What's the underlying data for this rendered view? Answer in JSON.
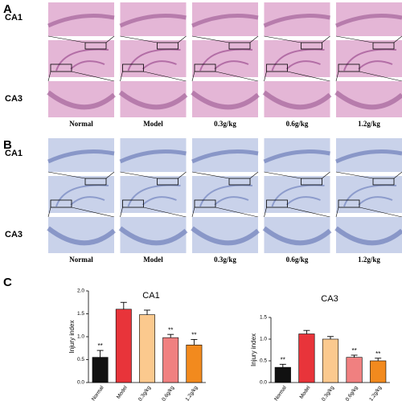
{
  "panels": [
    {
      "label": "A",
      "rows": [
        "CA1",
        "CA3"
      ],
      "columns": [
        "Normal",
        "Model",
        "0.3g/kg",
        "0.6g/kg",
        "1.2g/kg"
      ]
    },
    {
      "label": "B",
      "rows": [
        "CA1",
        "CA3"
      ],
      "columns": [
        "Normal",
        "Model",
        "0.3g/kg",
        "0.6g/kg",
        "1.2g/kg"
      ]
    },
    {
      "label": "C"
    }
  ],
  "chart_data": [
    {
      "type": "bar",
      "title": "CA1",
      "y_label": "Injury index",
      "categories": [
        "Normal",
        "Model",
        "0.3g/kg",
        "0.6g/kg",
        "1.2g/kg"
      ],
      "values": [
        0.55,
        1.6,
        1.48,
        0.98,
        0.82
      ],
      "errors": [
        0.15,
        0.15,
        0.1,
        0.07,
        0.12
      ],
      "colors": [
        "#111111",
        "#e8343a",
        "#fbc98e",
        "#f08080",
        "#f28a1e"
      ],
      "annotations": [
        "**",
        null,
        null,
        "**",
        "**"
      ],
      "ylim": [
        0,
        2
      ],
      "yticks": [
        {
          "value": 0,
          "label": "0.0"
        },
        0.5,
        {
          "value": 1,
          "label": "1.0"
        },
        1.5,
        {
          "value": 2,
          "label": "2.0"
        }
      ]
    },
    {
      "type": "bar",
      "title": "CA3",
      "y_label": "Injury index",
      "categories": [
        "Normal",
        "Model",
        "0.3g/kg",
        "0.6g/kg",
        "1.2g/kg"
      ],
      "values": [
        0.35,
        1.12,
        1.0,
        0.58,
        0.5
      ],
      "errors": [
        0.07,
        0.08,
        0.06,
        0.05,
        0.06
      ],
      "colors": [
        "#111111",
        "#e8343a",
        "#fbc98e",
        "#f08080",
        "#f28a1e"
      ],
      "annotations": [
        "**",
        null,
        null,
        "**",
        "**"
      ],
      "ylim": [
        0,
        1.5
      ],
      "yticks": [
        {
          "value": 0,
          "label": "0.0"
        },
        0.5,
        {
          "value": 1,
          "label": "1.0"
        },
        1.5
      ]
    }
  ]
}
